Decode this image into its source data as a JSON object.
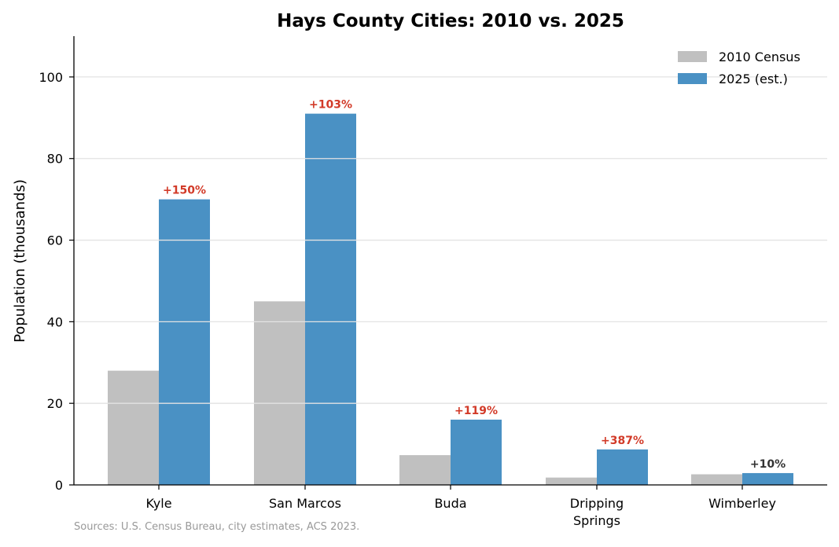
{
  "chart_data": {
    "type": "bar",
    "title": "Hays County Cities: 2010 vs. 2025",
    "xlabel": "",
    "ylabel": "Population (thousands)",
    "ylim": [
      0,
      110
    ],
    "yticks": [
      0,
      20,
      40,
      60,
      80,
      100
    ],
    "grid": "horizontal",
    "legend_position": "top-right",
    "categories": [
      [
        "Kyle"
      ],
      [
        "San Marcos"
      ],
      [
        "Buda"
      ],
      [
        "Dripping",
        "Springs"
      ],
      [
        "Wimberley"
      ]
    ],
    "series": [
      {
        "name": "2010 Census",
        "color": "#c0c0c0",
        "values": [
          28.0,
          45.0,
          7.3,
          1.8,
          2.6
        ]
      },
      {
        "name": "2025 (est.)",
        "color": "#4a91c4",
        "values": [
          70.0,
          91.0,
          16.0,
          8.7,
          2.9
        ]
      }
    ],
    "bar_labels": [
      {
        "text": "+150%",
        "color": "#d23a28"
      },
      {
        "text": "+103%",
        "color": "#d23a28"
      },
      {
        "text": "+119%",
        "color": "#d23a28"
      },
      {
        "text": "+387%",
        "color": "#d23a28"
      },
      {
        "text": "+10%",
        "color": "#333333"
      }
    ],
    "source": "Sources: U.S. Census Bureau, city estimates, ACS 2023."
  }
}
